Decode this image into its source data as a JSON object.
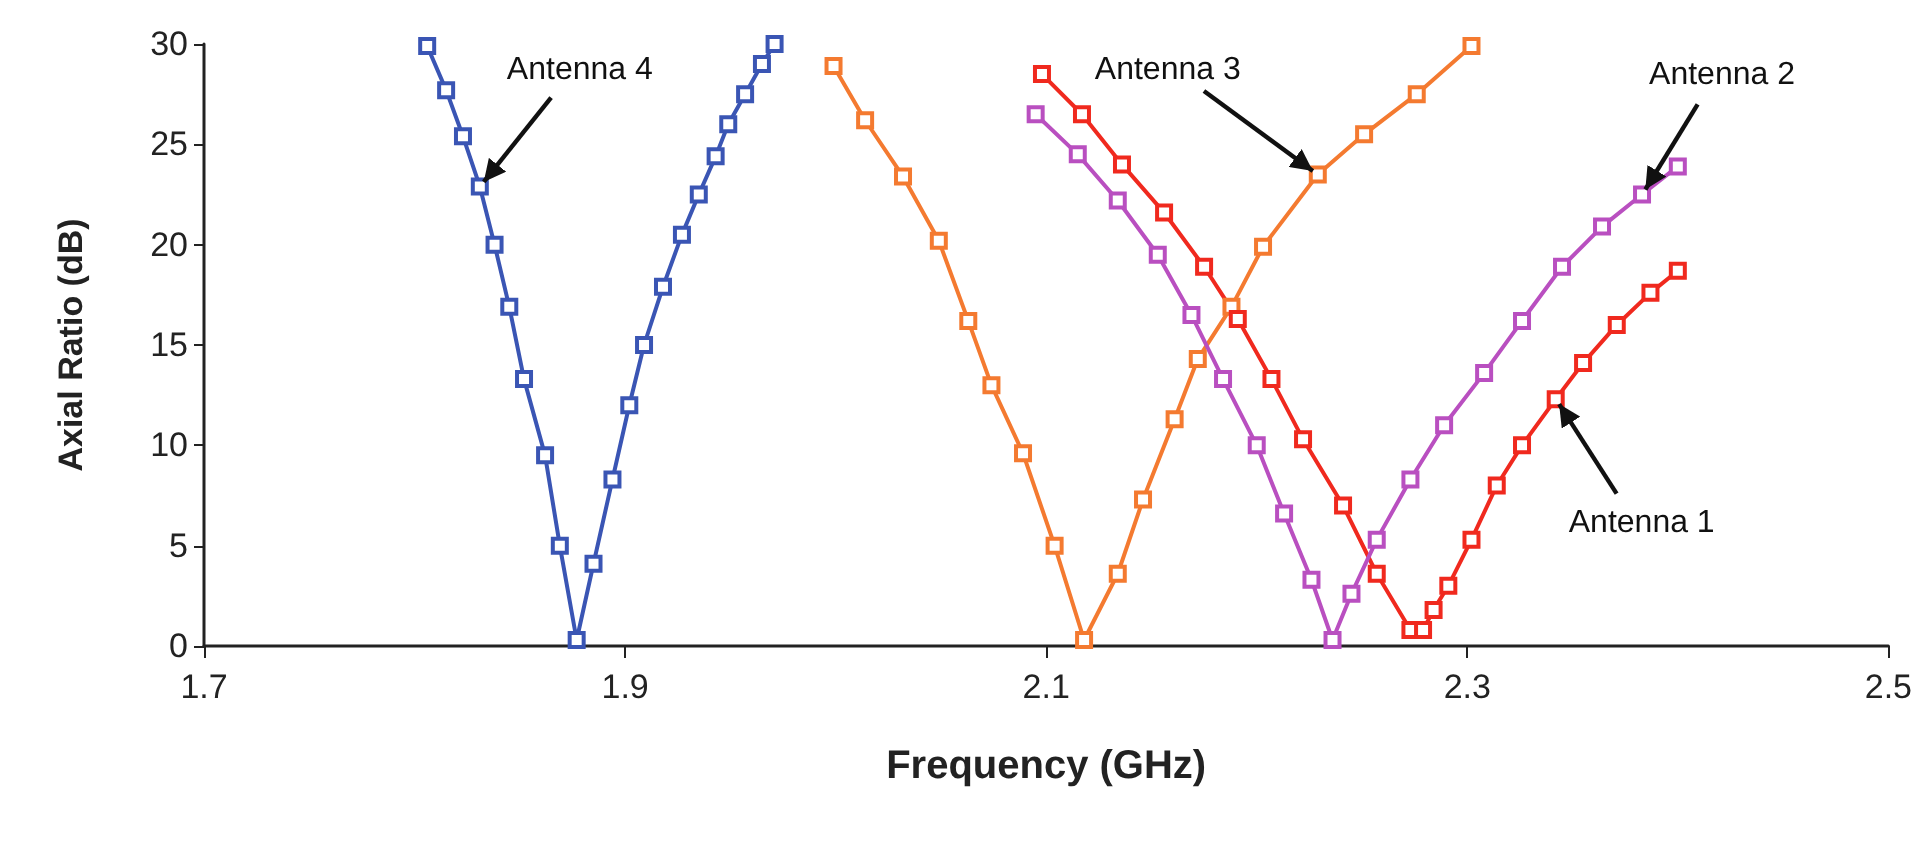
{
  "chart_data": {
    "type": "line",
    "xlabel": "Frequency (GHz)",
    "ylabel": "Axial Ratio (dB)",
    "xlim": [
      1.7,
      2.5
    ],
    "xticks": [
      1.7,
      1.9,
      2.1,
      2.3,
      2.5
    ],
    "ylim": [
      0,
      30
    ],
    "yticks": [
      0,
      5,
      10,
      15,
      20,
      25,
      30
    ],
    "grid": false,
    "marker": "square",
    "line_style": "solid",
    "series": [
      {
        "color": "#3a55b4",
        "x": [
          1.806,
          1.815,
          1.823,
          1.831,
          1.838,
          1.845,
          1.852,
          1.862,
          1.869,
          1.877,
          1.885,
          1.894,
          1.902,
          1.909,
          1.918,
          1.927,
          1.935,
          1.943,
          1.949,
          1.957,
          1.965,
          1.971
        ],
        "values": [
          29.9,
          27.7,
          25.4,
          22.9,
          20,
          16.9,
          13.3,
          9.5,
          5,
          0.3,
          4.1,
          8.3,
          12,
          15,
          17.9,
          20.5,
          22.5,
          24.4,
          26,
          27.5,
          29,
          30
        ]
      },
      {
        "color": "#f47a30",
        "x": [
          1.999,
          2.014,
          2.032,
          2.049,
          2.063,
          2.074,
          2.089,
          2.104,
          2.118,
          2.134,
          2.146,
          2.161,
          2.172,
          2.188,
          2.203,
          2.229,
          2.251,
          2.276,
          2.302
        ],
        "values": [
          28.9,
          26.2,
          23.4,
          20.2,
          16.2,
          13,
          9.6,
          5,
          0.3,
          3.6,
          7.3,
          11.3,
          14.3,
          16.9,
          19.9,
          23.5,
          25.5,
          27.5,
          29.9
        ]
      },
      {
        "color": "#f0291e",
        "x": [
          2.098,
          2.117,
          2.136,
          2.156,
          2.175,
          2.191,
          2.207,
          2.222,
          2.241,
          2.257,
          2.273,
          2.279,
          2.284,
          2.291,
          2.302,
          2.314,
          2.326,
          2.342,
          2.355,
          2.371,
          2.387,
          2.4
        ],
        "values": [
          28.5,
          26.5,
          24,
          21.6,
          18.9,
          16.3,
          13.3,
          10.3,
          7,
          3.6,
          0.8,
          0.8,
          1.8,
          3,
          5.3,
          8,
          10,
          12.3,
          14.1,
          16,
          17.6,
          18.7
        ]
      },
      {
        "color": "#b94fc0",
        "x": [
          2.095,
          2.115,
          2.134,
          2.153,
          2.169,
          2.184,
          2.2,
          2.213,
          2.226,
          2.236,
          2.245,
          2.257,
          2.273,
          2.289,
          2.308,
          2.326,
          2.345,
          2.364,
          2.383,
          2.4
        ],
        "values": [
          26.5,
          24.5,
          22.2,
          19.5,
          16.5,
          13.3,
          10,
          6.6,
          3.3,
          0.3,
          2.6,
          5.3,
          8.3,
          11,
          13.6,
          16.2,
          18.9,
          20.9,
          22.5,
          23.9
        ]
      }
    ],
    "annotations": [
      {
        "text": "Antenna 4",
        "x": 1.831,
        "y": 22.9
      },
      {
        "text": "Antenna 3",
        "x": 2.229,
        "y": 23.5
      },
      {
        "text": "Antenna 2",
        "x": 2.383,
        "y": 22.5
      },
      {
        "text": "Antenna 1",
        "x": 2.342,
        "y": 12.3
      }
    ]
  }
}
